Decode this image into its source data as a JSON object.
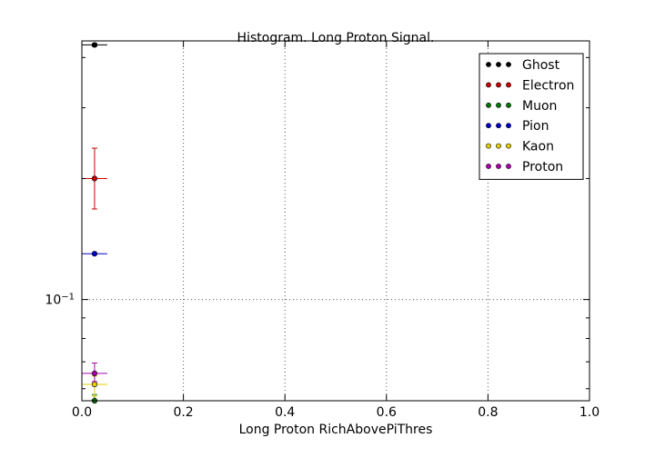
{
  "chart_data": {
    "type": "scatter",
    "title": "Histogram. Long Proton Signal.",
    "xlabel": "Long Proton RichAbovePiThres",
    "ylabel": "",
    "xlim": [
      0.0,
      1.0
    ],
    "ylim": [
      0.056,
      0.44
    ],
    "yscale": "log",
    "grid": true,
    "legend_position": "top-right",
    "x_ticks": [
      {
        "value": 0.0,
        "label": "0.0"
      },
      {
        "value": 0.2,
        "label": "0.2"
      },
      {
        "value": 0.4,
        "label": "0.4"
      },
      {
        "value": 0.6,
        "label": "0.6"
      },
      {
        "value": 0.8,
        "label": "0.8"
      },
      {
        "value": 1.0,
        "label": "1.0"
      }
    ],
    "y_ticks": [
      {
        "value": 0.1,
        "base": "10",
        "exp": "−1"
      }
    ],
    "series": [
      {
        "name": "Ghost",
        "color": "#000000",
        "points": [
          {
            "x": 0.025,
            "y": 0.43,
            "xerr": 0.025,
            "yerr_low": 0.003,
            "yerr_high": 0.003
          }
        ]
      },
      {
        "name": "Electron",
        "color": "#cc0000",
        "points": [
          {
            "x": 0.025,
            "y": 0.2,
            "xerr": 0.025,
            "yerr_low": 0.032,
            "yerr_high": 0.038
          }
        ]
      },
      {
        "name": "Muon",
        "color": "#007700",
        "points": [
          {
            "x": 0.025,
            "y": 0.056,
            "xerr": 0.025,
            "yerr_low": 0.0,
            "yerr_high": 0.002
          }
        ]
      },
      {
        "name": "Pion",
        "color": "#0000cc",
        "points": [
          {
            "x": 0.025,
            "y": 0.13,
            "xerr": 0.025,
            "yerr_low": 0.0,
            "yerr_high": 0.0
          }
        ]
      },
      {
        "name": "Kaon",
        "color": "#e6cc00",
        "points": [
          {
            "x": 0.025,
            "y": 0.0615,
            "xerr": 0.025,
            "yerr_low": 0.004,
            "yerr_high": 0.003
          }
        ]
      },
      {
        "name": "Proton",
        "color": "#aa00aa",
        "points": [
          {
            "x": 0.025,
            "y": 0.0655,
            "xerr": 0.025,
            "yerr_low": 0.003,
            "yerr_high": 0.004
          }
        ]
      }
    ]
  }
}
